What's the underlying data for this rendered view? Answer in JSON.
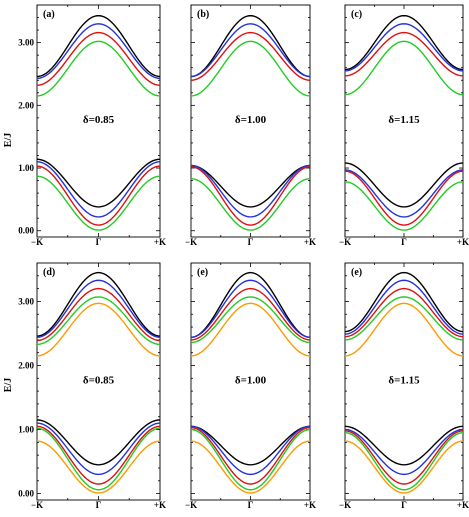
{
  "figure": {
    "ylabel": "E/J",
    "x_tick_labels": [
      "−K",
      "Γ",
      "+K"
    ],
    "y_tick_labels": [
      "0.00",
      "1.00",
      "2.00",
      "3.00"
    ],
    "series_colors": [
      "#000000",
      "#2233dd",
      "#dd1111",
      "#22cc22",
      "#ff9900"
    ]
  },
  "chart_data": [
    {
      "panel": "(a)",
      "type": "line",
      "delta_label": "δ=0.85",
      "x": [
        "-K",
        "Γ",
        "+K"
      ],
      "ylim": [
        -0.1,
        3.6
      ],
      "grid": false,
      "series": [
        {
          "color": "#000000",
          "lower": [
            1.14,
            0.38,
            1.14
          ],
          "upper": [
            2.46,
            3.43,
            2.46
          ]
        },
        {
          "color": "#2233dd",
          "lower": [
            1.1,
            0.22,
            1.1
          ],
          "upper": [
            2.43,
            3.3,
            2.43
          ]
        },
        {
          "color": "#dd1111",
          "lower": [
            1.03,
            0.09,
            1.03
          ],
          "upper": [
            2.32,
            3.16,
            2.32
          ]
        },
        {
          "color": "#22cc22",
          "lower": [
            0.87,
            0.01,
            0.87
          ],
          "upper": [
            2.15,
            3.02,
            2.15
          ]
        }
      ]
    },
    {
      "panel": "(b)",
      "type": "line",
      "delta_label": "δ=1.00",
      "x": [
        "-K",
        "Γ",
        "+K"
      ],
      "ylim": [
        -0.1,
        3.6
      ],
      "grid": false,
      "series": [
        {
          "color": "#000000",
          "lower": [
            1.04,
            0.38,
            1.04
          ],
          "upper": [
            2.46,
            3.43,
            2.46
          ]
        },
        {
          "color": "#2233dd",
          "lower": [
            1.04,
            0.22,
            1.04
          ],
          "upper": [
            2.46,
            3.3,
            2.46
          ]
        },
        {
          "color": "#dd1111",
          "lower": [
            1.02,
            0.09,
            1.02
          ],
          "upper": [
            2.4,
            3.16,
            2.4
          ]
        },
        {
          "color": "#22cc22",
          "lower": [
            0.83,
            0.01,
            0.83
          ],
          "upper": [
            2.15,
            3.02,
            2.15
          ]
        }
      ]
    },
    {
      "panel": "(c)",
      "type": "line",
      "delta_label": "δ=1.15",
      "x": [
        "-K",
        "Γ",
        "+K"
      ],
      "ylim": [
        -0.1,
        3.6
      ],
      "grid": false,
      "series": [
        {
          "color": "#000000",
          "lower": [
            1.08,
            0.38,
            1.08
          ],
          "upper": [
            2.57,
            3.43,
            2.57
          ]
        },
        {
          "color": "#2233dd",
          "lower": [
            0.97,
            0.22,
            0.97
          ],
          "upper": [
            2.55,
            3.3,
            2.55
          ]
        },
        {
          "color": "#dd1111",
          "lower": [
            0.95,
            0.09,
            0.95
          ],
          "upper": [
            2.47,
            3.16,
            2.47
          ]
        },
        {
          "color": "#22cc22",
          "lower": [
            0.78,
            0.01,
            0.78
          ],
          "upper": [
            2.17,
            3.02,
            2.17
          ]
        }
      ]
    },
    {
      "panel": "(d)",
      "type": "line",
      "delta_label": "δ=0.85",
      "x": [
        "-K",
        "Γ",
        "+K"
      ],
      "ylim": [
        -0.1,
        3.6
      ],
      "grid": false,
      "series": [
        {
          "color": "#000000",
          "lower": [
            1.15,
            0.45,
            1.15
          ],
          "upper": [
            2.46,
            3.45,
            2.46
          ]
        },
        {
          "color": "#2233dd",
          "lower": [
            1.1,
            0.3,
            1.1
          ],
          "upper": [
            2.44,
            3.33,
            2.44
          ]
        },
        {
          "color": "#dd1111",
          "lower": [
            1.05,
            0.15,
            1.05
          ],
          "upper": [
            2.39,
            3.2,
            2.39
          ]
        },
        {
          "color": "#22cc22",
          "lower": [
            1.02,
            0.06,
            1.02
          ],
          "upper": [
            2.33,
            3.07,
            2.33
          ]
        },
        {
          "color": "#ff9900",
          "lower": [
            0.82,
            0.01,
            0.82
          ],
          "upper": [
            2.15,
            2.97,
            2.15
          ]
        }
      ]
    },
    {
      "panel": "(e)",
      "type": "line",
      "delta_label": "δ=1.00",
      "x": [
        "-K",
        "Γ",
        "+K"
      ],
      "ylim": [
        -0.1,
        3.6
      ],
      "grid": false,
      "series": [
        {
          "color": "#000000",
          "lower": [
            1.05,
            0.45,
            1.05
          ],
          "upper": [
            2.44,
            3.45,
            2.44
          ]
        },
        {
          "color": "#2233dd",
          "lower": [
            1.05,
            0.3,
            1.05
          ],
          "upper": [
            2.44,
            3.33,
            2.44
          ]
        },
        {
          "color": "#dd1111",
          "lower": [
            1.03,
            0.15,
            1.03
          ],
          "upper": [
            2.4,
            3.2,
            2.4
          ]
        },
        {
          "color": "#22cc22",
          "lower": [
            1.0,
            0.06,
            1.0
          ],
          "upper": [
            2.36,
            3.07,
            2.36
          ]
        },
        {
          "color": "#ff9900",
          "lower": [
            0.82,
            0.01,
            0.82
          ],
          "upper": [
            2.15,
            2.97,
            2.15
          ]
        }
      ]
    },
    {
      "panel": "(e)",
      "type": "line",
      "delta_label": "δ=1.15",
      "x": [
        "-K",
        "Γ",
        "+K"
      ],
      "ylim": [
        -0.1,
        3.6
      ],
      "grid": false,
      "series": [
        {
          "color": "#000000",
          "lower": [
            1.05,
            0.45,
            1.05
          ],
          "upper": [
            2.53,
            3.45,
            2.53
          ]
        },
        {
          "color": "#2233dd",
          "lower": [
            1.0,
            0.3,
            1.0
          ],
          "upper": [
            2.49,
            3.33,
            2.49
          ]
        },
        {
          "color": "#dd1111",
          "lower": [
            0.98,
            0.15,
            0.98
          ],
          "upper": [
            2.45,
            3.2,
            2.45
          ]
        },
        {
          "color": "#22cc22",
          "lower": [
            0.95,
            0.06,
            0.95
          ],
          "upper": [
            2.4,
            3.07,
            2.4
          ]
        },
        {
          "color": "#ff9900",
          "lower": [
            0.82,
            0.01,
            0.82
          ],
          "upper": [
            2.15,
            2.97,
            2.15
          ]
        }
      ]
    }
  ]
}
